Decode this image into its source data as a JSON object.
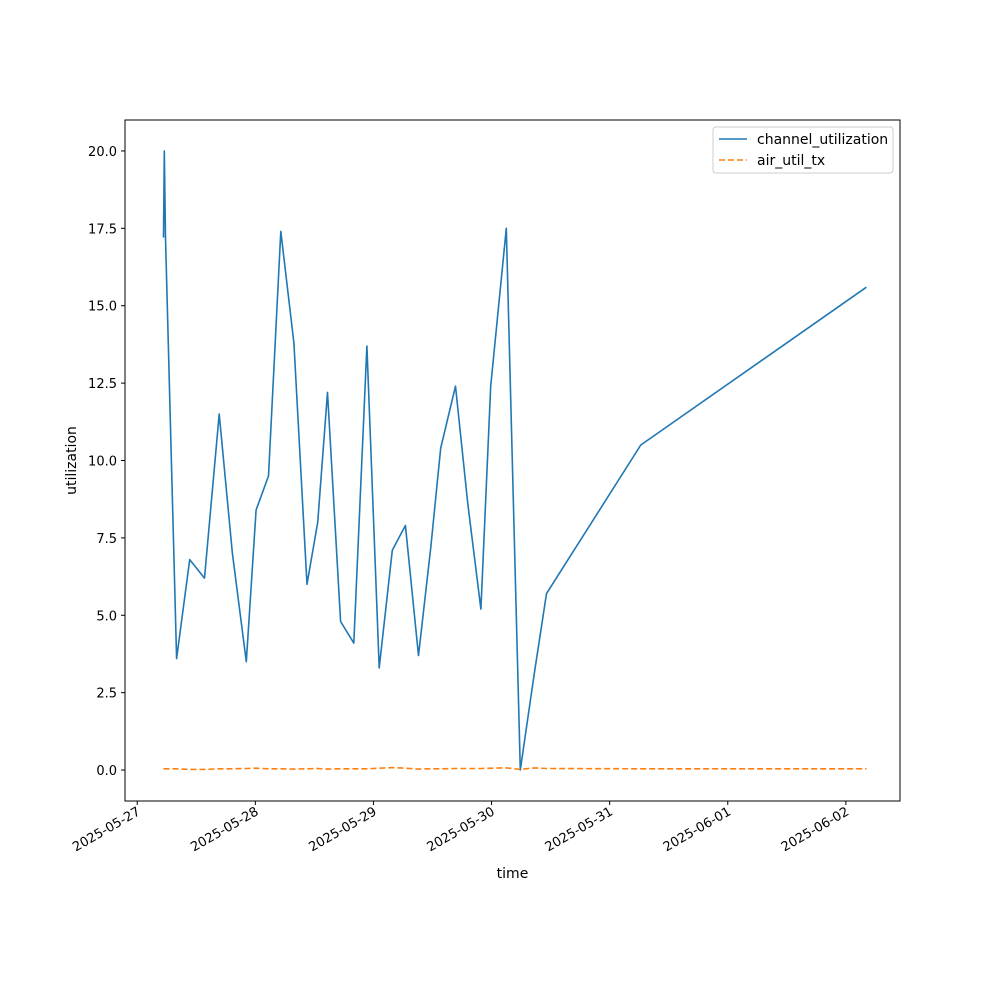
{
  "chart_data": {
    "type": "line",
    "title": "",
    "xlabel": "time",
    "ylabel": "utilization",
    "xlim": [
      "2025-05-26T21:31",
      "2025-06-02T11:00"
    ],
    "ylim": [
      -1.0,
      21.0
    ],
    "x_ticks": [
      "2025-05-27",
      "2025-05-28",
      "2025-05-29",
      "2025-05-30",
      "2025-05-31",
      "2025-06-01",
      "2025-06-02"
    ],
    "y_ticks": [
      "0.0",
      "2.5",
      "5.0",
      "7.5",
      "10.0",
      "12.5",
      "15.0",
      "17.5",
      "20.0"
    ],
    "y_tick_values": [
      0,
      2.5,
      5,
      7.5,
      10,
      12.5,
      15,
      17.5,
      20
    ],
    "grid": false,
    "legend_position": "top-right",
    "series": [
      {
        "name": "channel_utilization",
        "color": "#1f77b4",
        "style": "solid",
        "points": [
          [
            "2025-05-27T05:20",
            17.2
          ],
          [
            "2025-05-27T05:30",
            20.0
          ],
          [
            "2025-05-27T05:45",
            17.2
          ],
          [
            "2025-05-27T08:00",
            3.6
          ],
          [
            "2025-05-27T10:40",
            6.8
          ],
          [
            "2025-05-27T13:40",
            6.2
          ],
          [
            "2025-05-27T16:40",
            11.5
          ],
          [
            "2025-05-27T19:20",
            7.0
          ],
          [
            "2025-05-27T22:10",
            3.5
          ],
          [
            "2025-05-28T00:10",
            8.4
          ],
          [
            "2025-05-28T02:40",
            9.5
          ],
          [
            "2025-05-28T05:10",
            17.4
          ],
          [
            "2025-05-28T07:50",
            13.8
          ],
          [
            "2025-05-28T10:30",
            6.0
          ],
          [
            "2025-05-28T12:40",
            8.0
          ],
          [
            "2025-05-28T14:40",
            12.2
          ],
          [
            "2025-05-28T17:20",
            4.8
          ],
          [
            "2025-05-28T20:00",
            4.1
          ],
          [
            "2025-05-28T22:40",
            13.7
          ],
          [
            "2025-05-29T01:10",
            3.3
          ],
          [
            "2025-05-29T03:50",
            7.1
          ],
          [
            "2025-05-29T06:30",
            7.9
          ],
          [
            "2025-05-29T09:10",
            3.7
          ],
          [
            "2025-05-29T11:40",
            7.2
          ],
          [
            "2025-05-29T13:40",
            10.4
          ],
          [
            "2025-05-29T16:40",
            12.4
          ],
          [
            "2025-05-29T19:10",
            8.6
          ],
          [
            "2025-05-29T21:50",
            5.2
          ],
          [
            "2025-05-29T23:50",
            12.4
          ],
          [
            "2025-05-30T03:00",
            17.5
          ],
          [
            "2025-05-30T05:50",
            0.0
          ],
          [
            "2025-05-30T08:40",
            3.1
          ],
          [
            "2025-05-30T11:10",
            5.7
          ],
          [
            "2025-05-31T06:20",
            10.5
          ],
          [
            "2025-06-02T04:10",
            15.6
          ]
        ]
      },
      {
        "name": "air_util_tx",
        "color": "#ff7f0e",
        "style": "dashed",
        "points": [
          [
            "2025-05-27T05:20",
            0.04
          ],
          [
            "2025-05-27T08:00",
            0.04
          ],
          [
            "2025-05-27T10:40",
            0.02
          ],
          [
            "2025-05-27T13:40",
            0.02
          ],
          [
            "2025-05-27T16:40",
            0.04
          ],
          [
            "2025-05-27T19:20",
            0.04
          ],
          [
            "2025-05-27T22:10",
            0.05
          ],
          [
            "2025-05-28T00:10",
            0.06
          ],
          [
            "2025-05-28T02:40",
            0.04
          ],
          [
            "2025-05-28T05:10",
            0.04
          ],
          [
            "2025-05-28T07:50",
            0.03
          ],
          [
            "2025-05-28T10:30",
            0.04
          ],
          [
            "2025-05-28T12:40",
            0.05
          ],
          [
            "2025-05-28T14:40",
            0.03
          ],
          [
            "2025-05-28T17:20",
            0.04
          ],
          [
            "2025-05-28T20:00",
            0.04
          ],
          [
            "2025-05-28T22:40",
            0.04
          ],
          [
            "2025-05-29T01:10",
            0.06
          ],
          [
            "2025-05-29T03:50",
            0.08
          ],
          [
            "2025-05-29T06:30",
            0.06
          ],
          [
            "2025-05-29T09:10",
            0.03
          ],
          [
            "2025-05-29T11:40",
            0.04
          ],
          [
            "2025-05-29T13:40",
            0.04
          ],
          [
            "2025-05-29T16:40",
            0.05
          ],
          [
            "2025-05-29T19:10",
            0.05
          ],
          [
            "2025-05-29T21:50",
            0.05
          ],
          [
            "2025-05-29T23:50",
            0.06
          ],
          [
            "2025-05-30T03:00",
            0.07
          ],
          [
            "2025-05-30T05:50",
            0.02
          ],
          [
            "2025-05-30T08:40",
            0.07
          ],
          [
            "2025-05-30T11:10",
            0.05
          ],
          [
            "2025-05-31T06:20",
            0.04
          ],
          [
            "2025-06-02T04:10",
            0.04
          ]
        ]
      }
    ]
  }
}
